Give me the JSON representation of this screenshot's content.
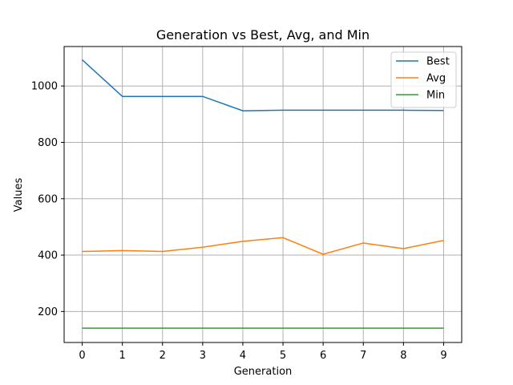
{
  "chart_data": {
    "type": "line",
    "title": "Generation vs Best, Avg, and Min",
    "xlabel": "Generation",
    "ylabel": "Values",
    "x": [
      0,
      1,
      2,
      3,
      4,
      5,
      6,
      7,
      8,
      9
    ],
    "xlim": [
      -0.45,
      9.45
    ],
    "ylim": [
      90,
      1140
    ],
    "xticks": [
      0,
      1,
      2,
      3,
      4,
      5,
      6,
      7,
      8,
      9
    ],
    "yticks": [
      200,
      400,
      600,
      800,
      1000
    ],
    "grid": true,
    "legend_position": "top-right",
    "series": [
      {
        "name": "Best",
        "color": "#1f77b4",
        "values": [
          1093,
          963,
          963,
          963,
          912,
          914,
          914,
          914,
          914,
          913
        ]
      },
      {
        "name": "Avg",
        "color": "#ff7f0e",
        "values": [
          413,
          416,
          413,
          428,
          449,
          462,
          403,
          443,
          423,
          452
        ]
      },
      {
        "name": "Min",
        "color": "#2ca02c",
        "values": [
          141,
          141,
          141,
          141,
          141,
          141,
          141,
          141,
          141,
          141
        ]
      }
    ]
  }
}
